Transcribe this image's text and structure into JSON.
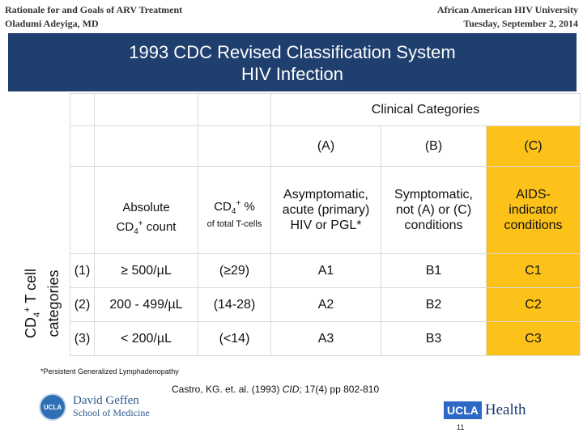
{
  "header": {
    "left_line1": "Rationale for and Goals of ARV Treatment",
    "left_line2": "Oladumi Adeyiga, MD",
    "right_line1": "African American HIV University",
    "right_line2": "Tuesday, September 2, 2014"
  },
  "banner": {
    "title_line1": "1993 CDC Revised Classification System",
    "title_line2": "HIV Infection"
  },
  "table": {
    "y_axis_label_line1_prefix": "CD",
    "y_axis_label_line1_sub": "4",
    "y_axis_label_line1_sup": "+",
    "y_axis_label_line1_suffix": " T cell",
    "y_axis_label_line2": "categories",
    "clinical_header": "Clinical Categories",
    "category_codes": [
      "(A)",
      "(B)",
      "(C)"
    ],
    "category_desc_lines": [
      [
        "Asymptomatic,",
        "acute (primary)",
        "HIV or PGL*"
      ],
      [
        "Symptomatic,",
        "not (A) or (C)",
        "conditions"
      ],
      [
        "AIDS-",
        "indicator",
        "conditions"
      ]
    ],
    "abs_header_line1": "Absolute",
    "abs_header_line2_prefix": "CD",
    "abs_header_line2_sub": "4",
    "abs_header_line2_sup": "+",
    "abs_header_line2_suffix": " count",
    "pct_header_prefix": "CD",
    "pct_header_sub": "4",
    "pct_header_sup": "+",
    "pct_header_suffix": " %",
    "pct_header_note": "of total T-cells",
    "rows": [
      {
        "num": "(1)",
        "abs": "≥ 500/µL",
        "pct": "(≥29)",
        "a": "A1",
        "b": "B1",
        "c": "C1"
      },
      {
        "num": "(2)",
        "abs": "200 - 499/µL",
        "pct": "(14-28)",
        "a": "A2",
        "b": "B2",
        "c": "C2"
      },
      {
        "num": "(3)",
        "abs": "< 200/µL",
        "pct": "(<14)",
        "a": "A3",
        "b": "B3",
        "c": "C3"
      }
    ],
    "highlight_color": "#fdc21a"
  },
  "footnote": "*Persistent Generalized Lymphadenopathy",
  "citation": {
    "prefix": "Castro, KG. et. al. (1993) ",
    "journal": "CID",
    "suffix": "; 17(4) pp 802-810"
  },
  "logos": {
    "geffen_seal": "UCLA",
    "geffen_line1": "David Geffen",
    "geffen_line2": "School of Medicine",
    "ucla_box": "UCLA",
    "ucla_health": "Health"
  },
  "slide_number": "11",
  "colors": {
    "banner": "#1f3f6e",
    "ucla_blue": "#2d68c4"
  }
}
